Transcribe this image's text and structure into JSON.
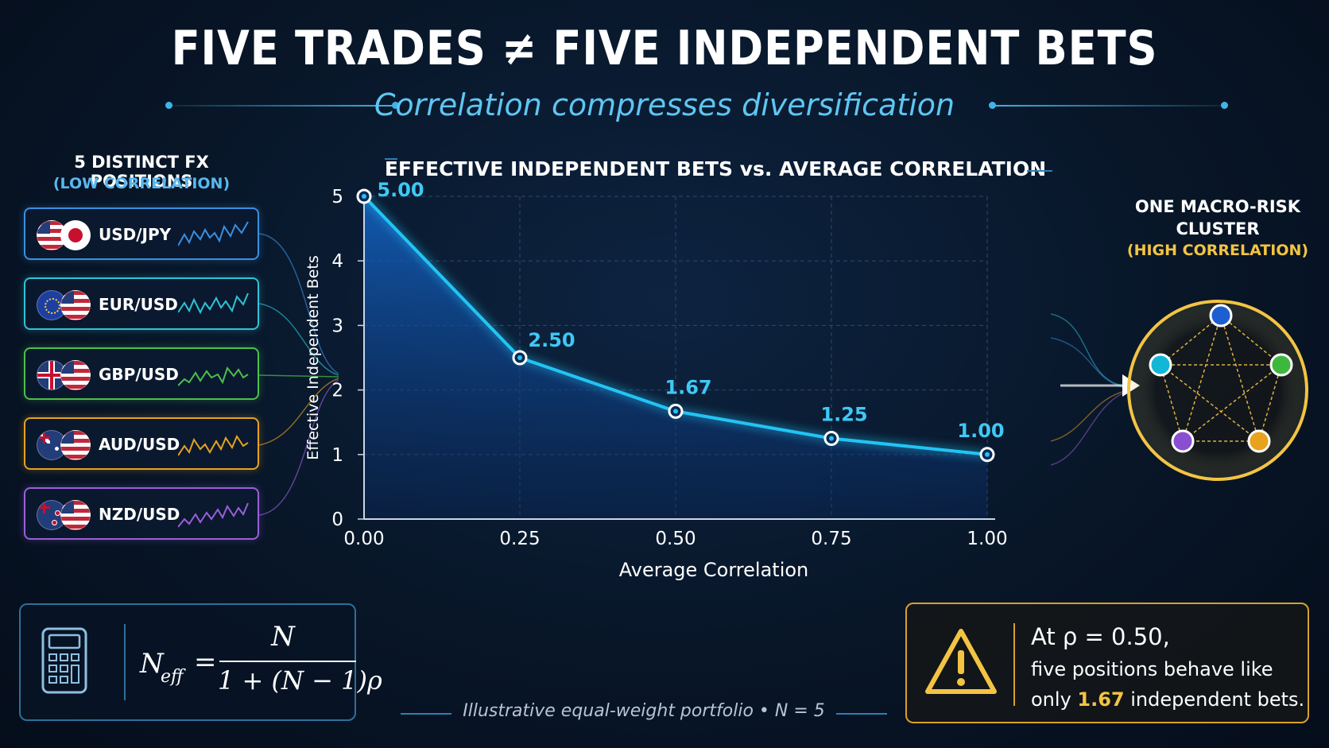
{
  "title": "FIVE TRADES ≠ FIVE INDEPENDENT BETS",
  "subtitle": "Correlation compresses diversification",
  "left_panel": {
    "title": "5 DISTINCT FX POSITIONS",
    "subtitle": "(LOW CORRELATION)",
    "pairs": [
      {
        "label": "USD/JPY",
        "color": "#3a8fe0"
      },
      {
        "label": "EUR/USD",
        "color": "#2ec4d6"
      },
      {
        "label": "GBP/USD",
        "color": "#4cc04a"
      },
      {
        "label": "AUD/USD",
        "color": "#e8a21e"
      },
      {
        "label": "NZD/USD",
        "color": "#9a5fd8"
      }
    ]
  },
  "cluster": {
    "title_line1": "ONE MACRO-RISK",
    "title_line2": "CLUSTER",
    "subtitle": "(HIGH CORRELATION)"
  },
  "chart_data": {
    "type": "line",
    "title": "EFFECTIVE INDEPENDENT BETS vs. AVERAGE CORRELATION",
    "xlabel": "Average Correlation",
    "ylabel": "Effective Independent Bets",
    "x": [
      0.0,
      0.25,
      0.5,
      0.75,
      1.0
    ],
    "y": [
      5.0,
      2.5,
      1.67,
      1.25,
      1.0
    ],
    "data_labels": [
      "5.00",
      "2.50",
      "1.67",
      "1.25",
      "1.00"
    ],
    "x_ticks": [
      "0.00",
      "0.25",
      "0.50",
      "0.75",
      "1.00"
    ],
    "y_ticks": [
      "0",
      "1",
      "2",
      "3",
      "4",
      "5"
    ],
    "xlim": [
      0,
      1
    ],
    "ylim": [
      0,
      5
    ],
    "grid": true,
    "line_color": "#22c4f4"
  },
  "formula": {
    "lhs": "N",
    "lhs_sub": "eff",
    "eq": "=",
    "numerator": "N",
    "denominator": "1 + (N − 1)ρ"
  },
  "footnote": "Illustrative equal-weight portfolio • N = 5",
  "callout": {
    "line1": "At ρ = 0.50,",
    "line2": "five positions behave like",
    "line3_pre": "only",
    "line3_value": "1.67",
    "line3_post": "independent bets."
  }
}
